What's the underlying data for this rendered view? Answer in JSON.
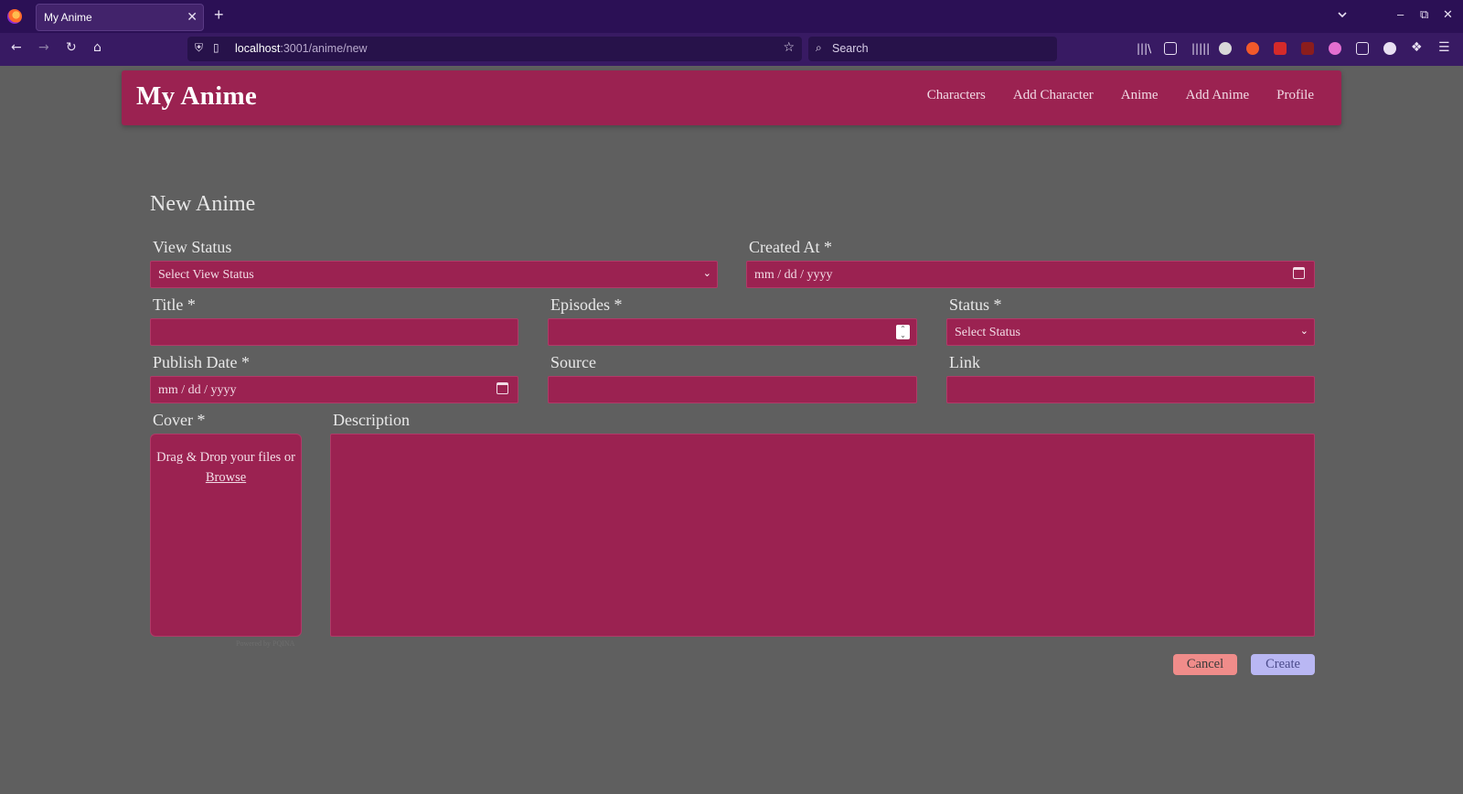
{
  "browser": {
    "tab_title": "My Anime",
    "close_glyph": "✕",
    "new_tab_glyph": "+",
    "url_host": "localhost",
    "url_path": ":3001/anime/new",
    "search_placeholder": "Search"
  },
  "header": {
    "title": "My Anime",
    "nav": [
      "Characters",
      "Add Character",
      "Anime",
      "Add Anime",
      "Profile"
    ]
  },
  "form": {
    "title": "New Anime",
    "view_status": {
      "label": "View Status",
      "placeholder": "Select View Status"
    },
    "created_at": {
      "label": "Created At *",
      "placeholder": "mm / dd / yyyy"
    },
    "title_field": {
      "label": "Title *",
      "value": ""
    },
    "episodes": {
      "label": "Episodes *",
      "value": ""
    },
    "status": {
      "label": "Status *",
      "placeholder": "Select Status"
    },
    "publish_date": {
      "label": "Publish Date *",
      "placeholder": "mm / dd / yyyy"
    },
    "source": {
      "label": "Source",
      "value": ""
    },
    "link": {
      "label": "Link",
      "value": ""
    },
    "cover": {
      "label": "Cover *",
      "drop_text": "Drag & Drop your files or",
      "browse": "Browse",
      "powered": "Powered by PQINA"
    },
    "description": {
      "label": "Description",
      "value": ""
    },
    "cancel_label": "Cancel",
    "create_label": "Create"
  },
  "colors": {
    "accent": "#9b2251",
    "page_bg": "#5f5f5f",
    "cancel": "#f08c8a",
    "create": "#b9b7f3"
  }
}
